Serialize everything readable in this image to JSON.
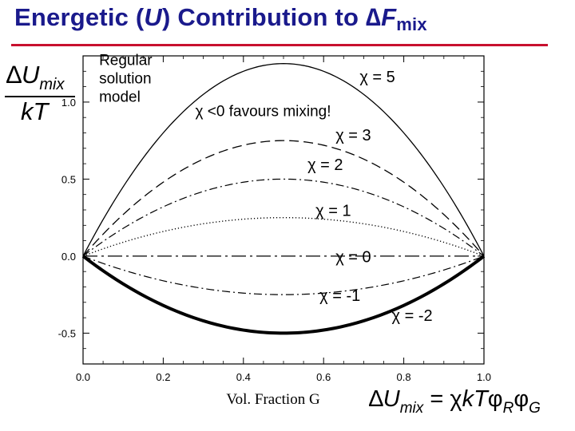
{
  "slide": {
    "title_main": "Energetic (",
    "title_var": "U",
    "title_mid": ") Contribution to ∆",
    "title_F": "F",
    "title_sub": "mix",
    "title_color": "#1a1a8c",
    "rule_color": "#c8102e"
  },
  "y_axis_label": {
    "num_delta": "∆",
    "num_var": "U",
    "num_sub": "mix",
    "den": "kT"
  },
  "formula": {
    "delta": "∆",
    "u": "U",
    "u_sub": "mix",
    "eq": " = ",
    "chi": "χ",
    "kt": "kT",
    "phi1": "φ",
    "sub1": "R",
    "phi2": "φ",
    "sub2": "G"
  },
  "chart_data": {
    "type": "line",
    "title": "",
    "xlabel": "Vol. Fraction G",
    "ylabel": "∆Umix / kT",
    "xlim": [
      0.0,
      1.0
    ],
    "ylim": [
      -0.7,
      1.3
    ],
    "x_ticks": [
      "0.0",
      "0.2",
      "0.4",
      "0.6",
      "0.8",
      "1.0"
    ],
    "y_ticks": [
      "-0.5",
      "0.0",
      "0.5",
      "1.0"
    ],
    "formula": "∆Umix = χ kT φR φG",
    "series": [
      {
        "name": "χ = 5",
        "chi": 5,
        "style": "solid",
        "label": "χ = 5",
        "label_x": 0.69,
        "label_y": 1.13
      },
      {
        "name": "χ = 3",
        "chi": 3,
        "style": "dashed",
        "label": "χ = 3",
        "label_x": 0.63,
        "label_y": 0.75
      },
      {
        "name": "χ = 2",
        "chi": 2,
        "style": "dashdot",
        "label": "χ = 2",
        "label_x": 0.56,
        "label_y": 0.56
      },
      {
        "name": "χ = 1",
        "chi": 1,
        "style": "dotted",
        "label": "χ = 1",
        "label_x": 0.58,
        "label_y": 0.26
      },
      {
        "name": "χ = 0",
        "chi": 0,
        "style": "longdashdot",
        "label": "χ = 0",
        "label_x": 0.63,
        "label_y": -0.04
      },
      {
        "name": "χ = -1",
        "chi": -1,
        "style": "dashdot",
        "label": "χ = -1",
        "label_x": 0.59,
        "label_y": -0.29
      },
      {
        "name": "χ = -2",
        "chi": -2,
        "style": "thick",
        "label": "χ = -2",
        "label_x": 0.77,
        "label_y": -0.42
      }
    ],
    "annotations": [
      {
        "text": "Regular solution model",
        "lines": [
          "Regular",
          "solution",
          "model"
        ],
        "x": 0.04,
        "y": 1.24
      },
      {
        "text": "χ <0 favours mixing!",
        "x": 0.28,
        "y": 0.91
      }
    ],
    "grid": false
  }
}
